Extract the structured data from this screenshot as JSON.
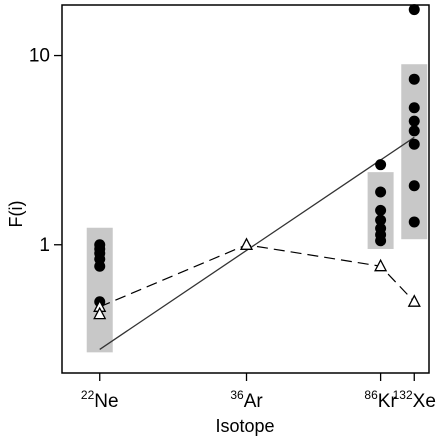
{
  "chart_data": {
    "type": "scatter",
    "xlabel": "Isotope",
    "ylabel": "F(i)",
    "y_scale": "log",
    "ylim": [
      0.21,
      18.5
    ],
    "y_ticks": [
      {
        "value": 1,
        "label": "1"
      },
      {
        "value": 10,
        "label": "10"
      }
    ],
    "grid": false,
    "x_ticks": [
      {
        "category": "Ne",
        "mass": 22,
        "label": "Ne",
        "superscript": "22"
      },
      {
        "category": "Ar",
        "mass": 36,
        "label": "Ar",
        "superscript": "36"
      },
      {
        "category": "Kr",
        "mass": 86,
        "label": "Kr",
        "superscript": "86"
      },
      {
        "category": "Xe",
        "mass": 132,
        "label": "Xe",
        "superscript": "132"
      }
    ],
    "x_reciprocal_range": [
      0.05,
      0.0058
    ],
    "ranges": [
      {
        "category": "Ne",
        "mass": 22,
        "low": 0.27,
        "high": 1.23
      },
      {
        "category": "Kr",
        "mass": 86,
        "low": 0.95,
        "high": 2.42
      },
      {
        "category": "Xe",
        "mass": 132,
        "low": 1.07,
        "high": 9.0
      }
    ],
    "series": [
      {
        "marker": "filled-circle",
        "points": [
          {
            "mass": 22,
            "y": 1.0
          },
          {
            "mass": 22,
            "y": 0.95
          },
          {
            "mass": 22,
            "y": 0.9
          },
          {
            "mass": 22,
            "y": 0.84
          },
          {
            "mass": 22,
            "y": 0.77
          },
          {
            "mass": 22,
            "y": 0.5
          },
          {
            "mass": 86,
            "y": 2.65
          },
          {
            "mass": 86,
            "y": 1.9
          },
          {
            "mass": 86,
            "y": 1.52
          },
          {
            "mass": 86,
            "y": 1.35
          },
          {
            "mass": 86,
            "y": 1.22
          },
          {
            "mass": 86,
            "y": 1.13
          },
          {
            "mass": 86,
            "y": 1.05
          },
          {
            "mass": 132,
            "y": 17.5
          },
          {
            "mass": 132,
            "y": 7.5
          },
          {
            "mass": 132,
            "y": 5.3
          },
          {
            "mass": 132,
            "y": 4.5
          },
          {
            "mass": 132,
            "y": 4.0
          },
          {
            "mass": 132,
            "y": 3.4
          },
          {
            "mass": 132,
            "y": 2.05
          },
          {
            "mass": 132,
            "y": 1.32
          }
        ]
      },
      {
        "marker": "open-triangle",
        "line": "dashed",
        "points": [
          {
            "mass": 22,
            "y": 0.47
          },
          {
            "mass": 36,
            "y": 1.0
          },
          {
            "mass": 86,
            "y": 0.77
          },
          {
            "mass": 132,
            "y": 0.5
          }
        ]
      },
      {
        "marker": "open-triangle",
        "points": [
          {
            "mass": 22,
            "y": 0.43
          }
        ]
      },
      {
        "marker": "none",
        "line": "solid",
        "points": [
          {
            "mass": 22,
            "y": 0.28
          },
          {
            "mass": 132,
            "y": 3.7
          }
        ]
      }
    ],
    "colors": {
      "range_bar": "#c8c8c8",
      "marker": "#000000",
      "line": "#333333",
      "axis": "#000000"
    }
  }
}
